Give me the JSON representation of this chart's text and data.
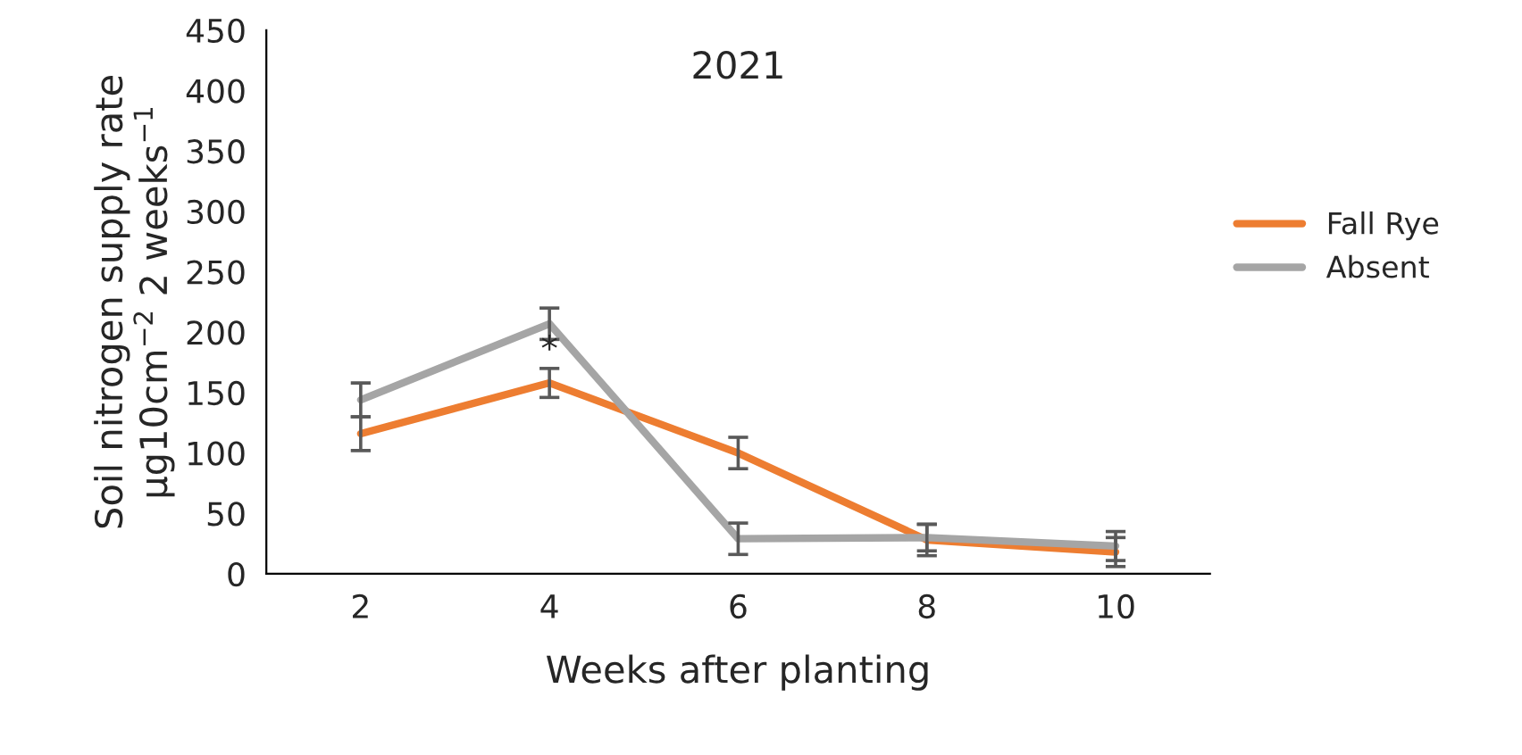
{
  "chart_data": {
    "type": "line",
    "title": "2021",
    "xlabel": "Weeks after planting",
    "ylabel": "Soil nitrogen supply rate\nµg10cm$^{−2}$ 2 weeks$^{−1}$",
    "categories": [
      "2",
      "4",
      "6",
      "8",
      "10"
    ],
    "series": [
      {
        "name": "Fall Rye",
        "color": "#ed7d31",
        "values": [
          116,
          158,
          100,
          28,
          18
        ],
        "errors": [
          14,
          12,
          13,
          13,
          12
        ]
      },
      {
        "name": "Absent",
        "color": "#a5a5a5",
        "values": [
          144,
          207,
          29,
          30,
          23
        ],
        "errors": [
          14,
          13,
          13,
          11,
          12
        ]
      }
    ],
    "annotations": [
      "*"
    ],
    "ylim": [
      0,
      450
    ],
    "yticks": [
      0,
      50,
      100,
      150,
      200,
      250,
      300,
      350,
      400,
      450
    ],
    "grid": false,
    "legend": "right",
    "marker": "none",
    "line_style": "solid"
  }
}
